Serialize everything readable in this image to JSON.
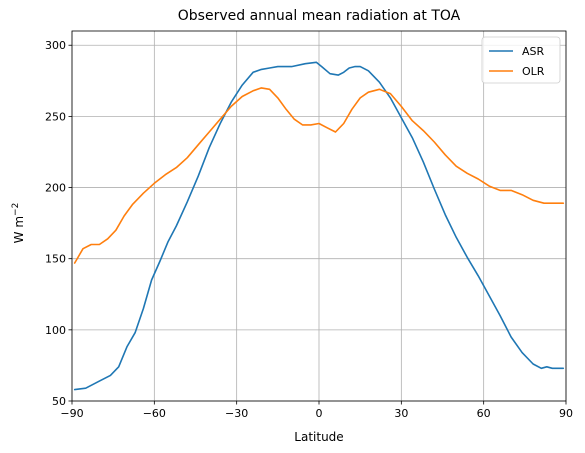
{
  "chart_data": {
    "type": "line",
    "title": "Observed annual mean radiation at TOA",
    "xlabel": "Latitude",
    "ylabel": "W m",
    "ylabel_superscript": "−2",
    "xlim": [
      -90,
      90
    ],
    "ylim": [
      50,
      310
    ],
    "xticks": [
      -90,
      -60,
      -30,
      0,
      30,
      60,
      90
    ],
    "yticks": [
      50,
      100,
      150,
      200,
      250,
      300
    ],
    "grid": true,
    "legend_position": "top-right",
    "series": [
      {
        "name": "ASR",
        "color": "#1f77b4",
        "x": [
          -89,
          -85,
          -80,
          -76,
          -73,
          -70,
          -67,
          -64,
          -61,
          -58,
          -55,
          -52,
          -48,
          -44,
          -40,
          -36,
          -32,
          -28,
          -24,
          -21,
          -18,
          -15,
          -10,
          -5,
          -1,
          1,
          4,
          7,
          9,
          11,
          13,
          15,
          18,
          22,
          26,
          30,
          34,
          38,
          42,
          46,
          50,
          54,
          58,
          62,
          66,
          70,
          74,
          78,
          81,
          83,
          85,
          87,
          89
        ],
        "y": [
          58,
          59,
          64,
          68,
          74,
          88,
          98,
          115,
          135,
          148,
          162,
          173,
          190,
          208,
          228,
          245,
          260,
          272,
          281,
          283,
          284,
          285,
          285,
          287,
          288,
          285,
          280,
          279,
          281,
          284,
          285,
          285,
          282,
          274,
          263,
          249,
          235,
          218,
          199,
          181,
          165,
          151,
          138,
          124,
          110,
          95,
          84,
          76,
          73,
          74,
          73,
          73,
          73
        ]
      },
      {
        "name": "OLR",
        "color": "#ff7f0e",
        "x": [
          -89,
          -86,
          -83,
          -80,
          -77,
          -74,
          -71,
          -68,
          -64,
          -60,
          -56,
          -52,
          -48,
          -44,
          -40,
          -36,
          -32,
          -28,
          -24,
          -21,
          -18,
          -15,
          -12,
          -9,
          -6,
          -3,
          0,
          3,
          6,
          9,
          12,
          15,
          18,
          22,
          26,
          30,
          34,
          38,
          42,
          46,
          50,
          54,
          58,
          62,
          66,
          70,
          74,
          78,
          82,
          86,
          89
        ],
        "y": [
          147,
          157,
          160,
          160,
          164,
          170,
          180,
          188,
          196,
          203,
          209,
          214,
          221,
          230,
          239,
          248,
          257,
          264,
          268,
          270,
          269,
          263,
          255,
          248,
          244,
          244,
          245,
          242,
          239,
          245,
          255,
          263,
          267,
          269,
          266,
          257,
          247,
          240,
          232,
          223,
          215,
          210,
          206,
          201,
          198,
          198,
          195,
          191,
          189,
          189,
          189
        ]
      }
    ]
  }
}
